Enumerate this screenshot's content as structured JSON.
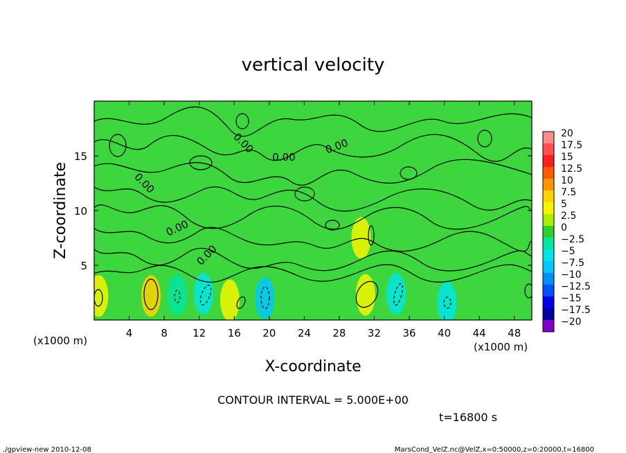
{
  "chart_data": {
    "type": "heatmap",
    "title": "vertical velocity",
    "xlabel": "X-coordinate",
    "ylabel": "Z-coordinate",
    "x_unit_left": "(x1000 m)",
    "x_unit_right": "(x1000 m)",
    "x_range": [
      0,
      50
    ],
    "y_range": [
      0,
      20
    ],
    "x_ticks": [
      4,
      8,
      12,
      16,
      20,
      24,
      28,
      32,
      36,
      40,
      44,
      48
    ],
    "y_ticks": [
      5,
      10,
      15
    ],
    "colorbar": {
      "labels": [
        "20",
        "17.5",
        "15",
        "12.5",
        "10",
        "7.5",
        "5",
        "2.5",
        "0",
        "−2.5",
        "−5",
        "−7.5",
        "−10",
        "−12.5",
        "−15",
        "−17.5",
        "−20"
      ],
      "colors": [
        "#ff8c8c",
        "#ff5050",
        "#ff1e1e",
        "#ff5a00",
        "#ff9600",
        "#ffd200",
        "#f5f500",
        "#aaee00",
        "#2ed12e",
        "#00e6a0",
        "#00e6e6",
        "#00c8ff",
        "#0090ff",
        "#0050ff",
        "#0000e6",
        "#0000a0",
        "#7d00c8"
      ]
    },
    "contour_labels": [
      "0.00",
      "0.00",
      "0.00",
      "0.00",
      "0.00",
      "0.00"
    ],
    "contour_interval": "CONTOUR INTERVAL = 5.000E+00",
    "time": "t=16800 s",
    "background_value": 0,
    "features": [
      {
        "x": 6.5,
        "z": 2.2,
        "value": 7.5
      },
      {
        "x": 31,
        "z": 2.3,
        "value": 5
      },
      {
        "x": 30.5,
        "z": 7.5,
        "value": 5
      },
      {
        "x": 0.5,
        "z": 2.2,
        "value": 5
      },
      {
        "x": 15.5,
        "z": 1.8,
        "value": 5
      },
      {
        "x": 19.5,
        "z": 2.0,
        "value": -7.5
      },
      {
        "x": 12.5,
        "z": 2.4,
        "value": -5
      },
      {
        "x": 34.5,
        "z": 2.4,
        "value": -5
      },
      {
        "x": 40.3,
        "z": 1.6,
        "value": -5
      },
      {
        "x": 9.5,
        "z": 2.3,
        "value": -2.5
      }
    ]
  },
  "footer": {
    "left": "./gpview-new  2010-12-08",
    "right": "MarsCond_VelZ.nc@VelZ,x=0:50000,z=0:20000,t=16800"
  }
}
